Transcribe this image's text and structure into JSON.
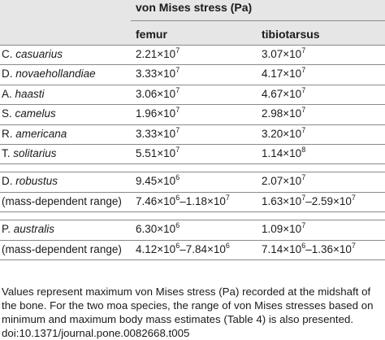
{
  "table": {
    "header": "von Mises stress (Pa)",
    "col_femur": "femur",
    "col_tibiotarsus": "tibiotarsus"
  },
  "groups": [
    {
      "rows": [
        {
          "genus": "C.",
          "species": "casuarius",
          "femur": {
            "m": "2.21",
            "e": "7"
          },
          "tibio": {
            "m": "3.07",
            "e": "7"
          }
        },
        {
          "genus": "D.",
          "species": "novaehollandiae",
          "femur": {
            "m": "3.33",
            "e": "7"
          },
          "tibio": {
            "m": "4.17",
            "e": "7"
          }
        },
        {
          "genus": "A.",
          "species": "haasti",
          "femur": {
            "m": "3.06",
            "e": "7"
          },
          "tibio": {
            "m": "4.67",
            "e": "7"
          }
        },
        {
          "genus": "S.",
          "species": "camelus",
          "femur": {
            "m": "1.96",
            "e": "7"
          },
          "tibio": {
            "m": "2.98",
            "e": "7"
          }
        },
        {
          "genus": "R.",
          "species": "americana",
          "femur": {
            "m": "3.33",
            "e": "7"
          },
          "tibio": {
            "m": "3.20",
            "e": "7"
          }
        },
        {
          "genus": "T.",
          "species": "solitarius",
          "femur": {
            "m": "5.51",
            "e": "7"
          },
          "tibio": {
            "m": "1.14",
            "e": "8"
          }
        }
      ]
    },
    {
      "rows": [
        {
          "genus": "D.",
          "species": "robustus",
          "femur": {
            "m": "9.45",
            "e": "6"
          },
          "tibio": {
            "m": "2.07",
            "e": "7"
          }
        },
        {
          "label": "(mass-dependent range)",
          "femur_range": {
            "m1": "7.46",
            "e1": "6",
            "m2": "1.18",
            "e2": "7"
          },
          "tibio_range": {
            "m1": "1.63",
            "e1": "7",
            "m2": "2.59",
            "e2": "7"
          }
        }
      ]
    },
    {
      "rows": [
        {
          "genus": "P.",
          "species": "australis",
          "femur": {
            "m": "6.30",
            "e": "6"
          },
          "tibio": {
            "m": "1.09",
            "e": "7"
          }
        },
        {
          "label": "(mass-dependent range)",
          "femur_range": {
            "m1": "4.12",
            "e1": "6",
            "m2": "7.84",
            "e2": "6"
          },
          "tibio_range": {
            "m1": "7.14",
            "e1": "6",
            "m2": "1.36",
            "e2": "7"
          }
        }
      ]
    }
  ],
  "caption": {
    "line1": "Values represent maximum von Mises stress (Pa) recorded at the midshaft of",
    "line2": "the bone. For the two moa species, the range of von Mises stresses based on",
    "line3": "minimum and maximum body mass estimates (Table 4) is also presented.",
    "doi": "doi:10.1371/journal.pone.0082668.t005"
  },
  "symbols": {
    "times": "×10",
    "dash": "–"
  }
}
